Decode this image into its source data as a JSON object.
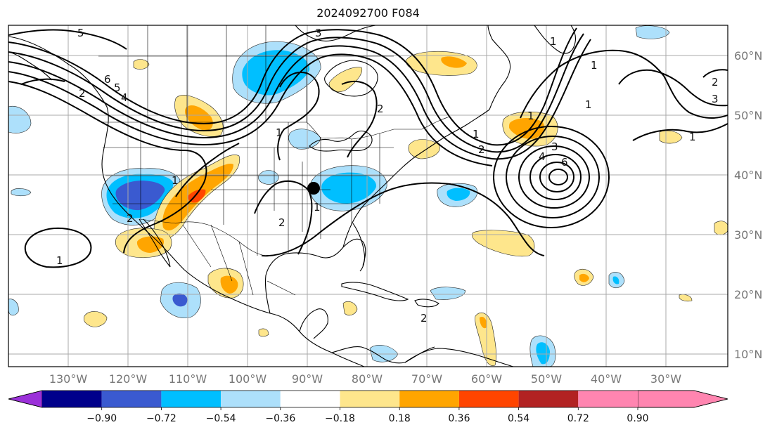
{
  "title": "2024092700 F084",
  "lat_ticks": [
    "60°N",
    "50°N",
    "40°N",
    "30°N",
    "20°N",
    "10°N"
  ],
  "lon_ticks": [
    "130°W",
    "120°W",
    "110°W",
    "100°W",
    "90°W",
    "80°W",
    "70°W",
    "60°W",
    "50°W",
    "40°W",
    "30°W"
  ],
  "colorbar": {
    "tick_labels": [
      "−0.90",
      "−0.72",
      "−0.54",
      "−0.36",
      "−0.18",
      "0.18",
      "0.36",
      "0.54",
      "0.72",
      "0.90"
    ],
    "colors": [
      "#9b30d9",
      "#00008b",
      "#3a5ad0",
      "#00bfff",
      "#ade0fb",
      "#ffffff",
      "#fee68c",
      "#ffa500",
      "#ff4500",
      "#b22222",
      "#ff85b0"
    ]
  },
  "contour_labels": [
    "5",
    "3",
    "6",
    "5",
    "4",
    "2",
    "1",
    "2",
    "1",
    "2",
    "1",
    "2",
    "1",
    "1",
    "1",
    "3",
    "4",
    "6",
    "1",
    "1",
    "2",
    "1",
    "2",
    "3",
    "2",
    "1"
  ],
  "marker": "city-marker"
}
